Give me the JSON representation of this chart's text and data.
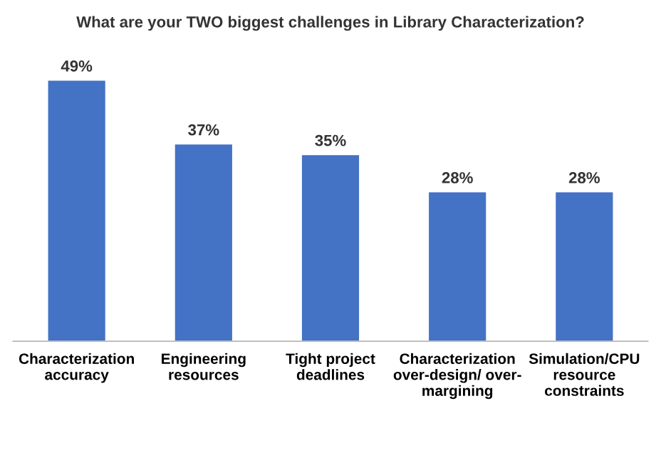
{
  "chart_data": {
    "type": "bar",
    "title": "What are your TWO biggest challenges in Library Characterization?",
    "categories": [
      "Characterization\naccuracy",
      "Engineering\nresources",
      "Tight project\ndeadlines",
      "Characterization\nover-design/ over-\nmargining",
      "Simulation/CPU\nresource\nconstraints"
    ],
    "values": [
      49,
      37,
      35,
      28,
      28
    ],
    "value_labels": [
      "49%",
      "37%",
      "35%",
      "28%",
      "28%"
    ],
    "color": "#4472c4",
    "grid": false,
    "legend": false
  }
}
